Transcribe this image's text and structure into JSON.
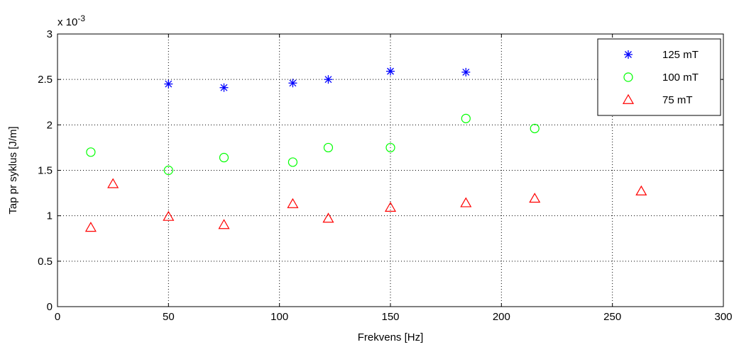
{
  "chart_data": {
    "type": "scatter",
    "xlabel": "Frekvens [Hz]",
    "ylabel": "Tap pr syklus [J/m]",
    "xlim": [
      0,
      300
    ],
    "ylim": [
      0,
      3
    ],
    "x_ticks": [
      "0",
      "50",
      "100",
      "150",
      "200",
      "250",
      "300"
    ],
    "y_ticks": [
      "0",
      "0.5",
      "1",
      "1.5",
      "2",
      "2.5",
      "3"
    ],
    "y_exponent_base": "x 10",
    "y_exponent_power": "-3",
    "grid": true,
    "legend_position": "top-right",
    "series": [
      {
        "name": "125 mT",
        "marker": "asterisk",
        "color": "#0000ff",
        "points": [
          [
            50,
            2.45
          ],
          [
            75,
            2.41
          ],
          [
            106,
            2.46
          ],
          [
            122,
            2.5
          ],
          [
            150,
            2.59
          ],
          [
            184,
            2.58
          ]
        ]
      },
      {
        "name": "100 mT",
        "marker": "circle",
        "color": "#00ff00",
        "points": [
          [
            15,
            1.7
          ],
          [
            50,
            1.5
          ],
          [
            75,
            1.64
          ],
          [
            106,
            1.59
          ],
          [
            122,
            1.75
          ],
          [
            150,
            1.75
          ],
          [
            184,
            2.07
          ],
          [
            215,
            1.96
          ]
        ]
      },
      {
        "name": "75 mT",
        "marker": "triangle",
        "color": "#ff0000",
        "points": [
          [
            15,
            0.87
          ],
          [
            25,
            1.35
          ],
          [
            50,
            0.99
          ],
          [
            75,
            0.9
          ],
          [
            106,
            1.13
          ],
          [
            122,
            0.97
          ],
          [
            150,
            1.09
          ],
          [
            184,
            1.14
          ],
          [
            215,
            1.19
          ],
          [
            263,
            1.27
          ]
        ]
      }
    ]
  }
}
